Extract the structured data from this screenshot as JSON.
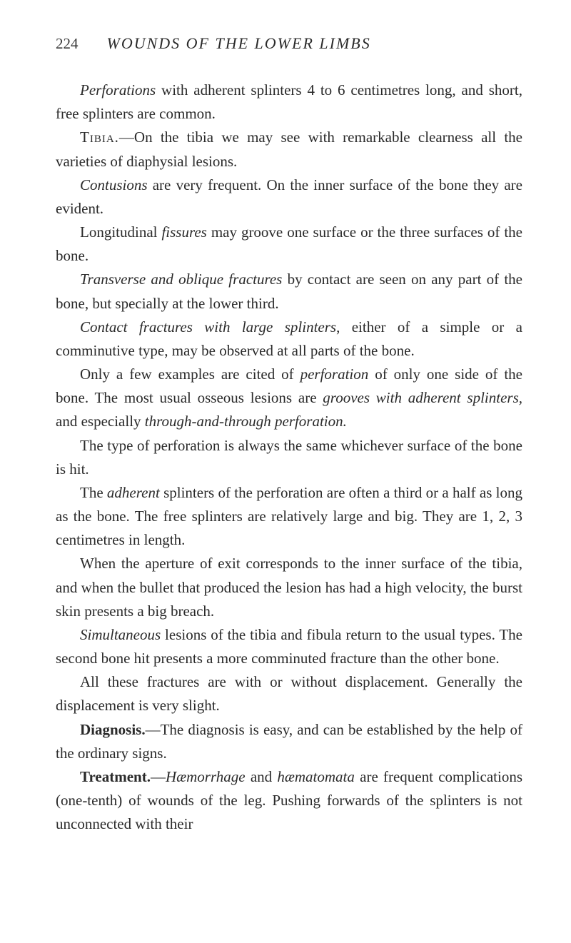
{
  "header": {
    "pageNumber": "224",
    "runningTitle": "WOUNDS OF THE LOWER LIMBS"
  },
  "paragraphs": {
    "p1_a": "Perforations",
    "p1_b": " with adherent splinters 4 to 6 centimetres long, and short, free splinters are common.",
    "p2_a": "Tibia.",
    "p2_b": "—On the tibia we may see with remarkable clear­ness all the varieties of diaphysial lesions.",
    "p3_a": "Contusions",
    "p3_b": " are very frequent. On the inner surface of the bone they are evident.",
    "p4_a": "Longitudinal ",
    "p4_b": "fissures",
    "p4_c": " may groove one surface or the three surfaces of the bone.",
    "p5_a": "Transverse and oblique fractures",
    "p5_b": " by contact are seen on any part of the bone, but specially at the lower third.",
    "p6_a": "Contact fractures with large splinters",
    "p6_b": ", either of a simple or a comminutive type, may be observed at all parts of the bone.",
    "p7_a": "Only a few examples are cited of ",
    "p7_b": "perforation",
    "p7_c": " of only one side of the bone. The most usual osseous lesions are ",
    "p7_d": "grooves with adherent splinters,",
    "p7_e": " and especially ",
    "p7_f": "through-and-through perforation.",
    "p8": "The type of perforation is always the same whichever surface of the bone is hit.",
    "p9_a": "The ",
    "p9_b": "adherent",
    "p9_c": " splinters of the perforation are often a third or a half as long as the bone. The free splinters are relatively large and big. They are 1, 2, 3 centimetres in length.",
    "p10": "When the aperture of exit corresponds to the inner surface of the tibia, and when the bullet that produced the lesion has had a high velocity, the burst skin presents a big breach.",
    "p11_a": "Simultaneous",
    "p11_b": " lesions of the tibia and fibula return to the usual types. The second bone hit presents a more com­minuted fracture than the other bone.",
    "p12": "All these fractures are with or without displacement. Generally the displacement is very slight.",
    "p13_a": "Diagnosis.",
    "p13_b": "—The diagnosis is easy, and can be estab­lished by the help of the ordinary signs.",
    "p14_a": "Treatment.",
    "p14_b": "—",
    "p14_c": "Hæmorrhage",
    "p14_d": " and ",
    "p14_e": "hæmatomata",
    "p14_f": " are frequent complications (one-tenth) of wounds of the leg. Pushing forwards of the splinters is not unconnected with their"
  }
}
